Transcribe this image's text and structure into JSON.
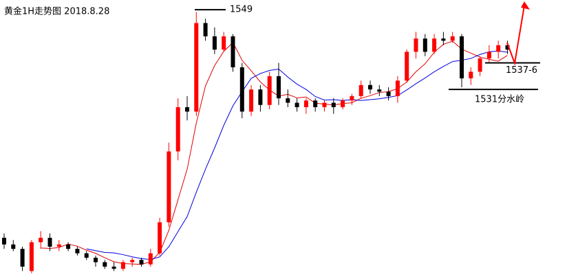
{
  "chart_data": {
    "type": "candlestick",
    "title": "黄金1H走势图 2018.8.28",
    "ylim": [
      1488.2,
      1551.2
    ],
    "up_color": "#ff0000",
    "down_color": "#000000",
    "open": [
      1497.5,
      1496,
      1495,
      1490,
      1496.5,
      1497.5,
      1495.5,
      1496,
      1495,
      1494,
      1493,
      1492,
      1491,
      1490.5,
      1492,
      1492.5,
      1491.5,
      1494,
      1501,
      1517,
      1527,
      1526,
      1546,
      1543,
      1540,
      1543,
      1536,
      1526,
      1531,
      1527.5,
      1534,
      1529,
      1528,
      1527,
      1528.5,
      1527,
      1528,
      1527,
      1528.5,
      1529.5,
      1532,
      1531,
      1530.5,
      1529.5,
      1533,
      1539.5,
      1542.5,
      1539.5,
      1542.5,
      1542,
      1543,
      1533.5,
      1535,
      1538,
      1539.5,
      1541
    ],
    "high": [
      1498.5,
      1497,
      1495.5,
      1497,
      1499,
      1498.5,
      1497,
      1496.5,
      1495.5,
      1494.5,
      1493.5,
      1492.5,
      1492,
      1492.5,
      1493,
      1493,
      1495,
      1502,
      1519,
      1529,
      1529.5,
      1548.5,
      1547,
      1545,
      1544,
      1543.5,
      1537,
      1532,
      1532,
      1535,
      1537,
      1531,
      1529,
      1529,
      1529,
      1528.5,
      1529,
      1529,
      1530,
      1533,
      1533,
      1532,
      1531.5,
      1534,
      1540,
      1544,
      1543.5,
      1543.5,
      1544,
      1544,
      1543.5,
      1536,
      1538.5,
      1541,
      1542,
      1542
    ],
    "low": [
      1495,
      1494.5,
      1490,
      1489.5,
      1495,
      1494.5,
      1494.5,
      1494.5,
      1493.5,
      1492.5,
      1491,
      1490.5,
      1490,
      1490,
      1491,
      1491,
      1491,
      1493.5,
      1500,
      1515,
      1524,
      1525,
      1542,
      1539,
      1539.5,
      1535,
      1524.5,
      1525,
      1526,
      1526.5,
      1527.5,
      1527,
      1526,
      1525.5,
      1526,
      1526,
      1525.5,
      1526.5,
      1527.5,
      1529,
      1530,
      1529.5,
      1528.5,
      1528,
      1532.5,
      1538,
      1538.5,
      1539,
      1541,
      1541.5,
      1531.5,
      1532,
      1534,
      1537,
      1538,
      1539
    ],
    "close": [
      1496,
      1495,
      1491,
      1496.5,
      1497.5,
      1495.5,
      1496,
      1495,
      1494,
      1493,
      1492,
      1491,
      1490.5,
      1492,
      1492.5,
      1491.5,
      1494,
      1501,
      1517,
      1527,
      1526,
      1546,
      1543,
      1540,
      1543,
      1536,
      1526,
      1531,
      1527.5,
      1534,
      1529,
      1528,
      1527,
      1528.5,
      1527,
      1528,
      1527,
      1528.5,
      1529.5,
      1532,
      1531,
      1530.5,
      1529.5,
      1533,
      1539.5,
      1542.5,
      1539.5,
      1542.5,
      1542,
      1543,
      1533.5,
      1535,
      1538,
      1539.5,
      1541,
      1540
    ],
    "series": [
      {
        "color": "#e00000",
        "values": [
          null,
          null,
          null,
          null,
          1495.2,
          1495.1,
          1495.3,
          1496.1,
          1495.6,
          1494.7,
          1494,
          1493,
          1492.1,
          1491.7,
          1491.6,
          1491.5,
          1492.1,
          1494.2,
          1499.2,
          1506.1,
          1513,
          1523.4,
          1531.8,
          1536.4,
          1539.6,
          1541.6,
          1537.6,
          1535.2,
          1532.7,
          1530.9,
          1529.5,
          1529.9,
          1529.1,
          1529.3,
          1527.9,
          1527.7,
          1527.5,
          1527.8,
          1528,
          1529,
          1529.6,
          1530.3,
          1530.5,
          1531.2,
          1532.7,
          1535,
          1536.8,
          1539.4,
          1541.2,
          1541.9,
          1540.1,
          1539.2,
          1538.3,
          1537.8,
          1537.4,
          1538.7
        ]
      },
      {
        "color": "#0000e0",
        "values": [
          null,
          null,
          null,
          null,
          null,
          null,
          null,
          null,
          null,
          1495,
          1494.6,
          1494.2,
          1494.1,
          1493.7,
          1493.2,
          1492.8,
          1492.6,
          1493.2,
          1495.5,
          1498.9,
          1502.3,
          1507.8,
          1513,
          1517.8,
          1522.9,
          1527.3,
          1530.5,
          1533.5,
          1534.6,
          1535.3,
          1535.6,
          1533.8,
          1532.2,
          1531,
          1529.4,
          1528.6,
          1528.7,
          1528.5,
          1528.7,
          1528.5,
          1528.7,
          1528.9,
          1529.2,
          1529.6,
          1530.9,
          1532.3,
          1533.6,
          1535,
          1536.2,
          1537.3,
          1537.6,
          1538,
          1538.9,
          1539.5,
          1539.7,
          1539.4
        ]
      }
    ],
    "levels": [
      1549,
      {
        "value": 1537,
        "label": "1537-6"
      },
      {
        "value": 1531,
        "label": "1531分水岭"
      }
    ]
  }
}
